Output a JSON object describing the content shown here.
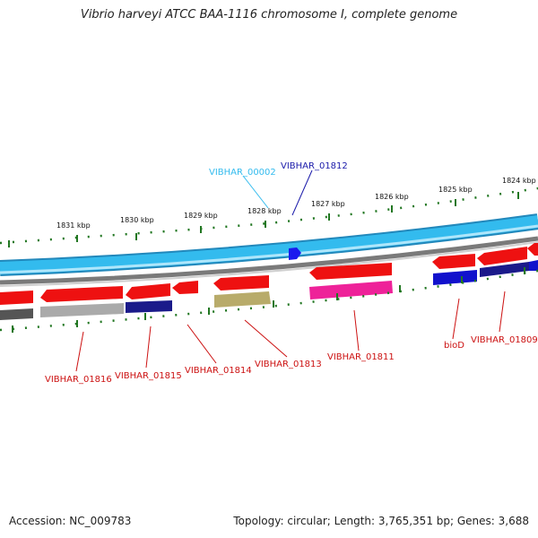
{
  "title": "Vibrio harveyi ATCC BAA-1116 chromosome I, complete genome",
  "footer": {
    "accession": "Accession: NC_009783",
    "summary": "Topology: circular; Length: 3,765,351 bp; Genes: 3,688"
  },
  "scale_labels": [
    "1831 kbp",
    "1830 kbp",
    "1829 kbp",
    "1828 kbp",
    "1827 kbp",
    "1826 kbp",
    "1825 kbp",
    "1824 kbp"
  ],
  "gene_labels_top": [
    {
      "text": "VIBHAR_00002",
      "color": "#33bbee"
    },
    {
      "text": "VIBHAR_01812",
      "color": "#1a1aaa"
    }
  ],
  "gene_labels_bottom": [
    {
      "text": "VIBHAR_01816",
      "color": "#cc1111"
    },
    {
      "text": "VIBHAR_01815",
      "color": "#cc1111"
    },
    {
      "text": "VIBHAR_01814",
      "color": "#cc1111"
    },
    {
      "text": "VIBHAR_01813",
      "color": "#cc1111"
    },
    {
      "text": "VIBHAR_01811",
      "color": "#cc1111"
    },
    {
      "text": "bioD",
      "color": "#cc1111"
    },
    {
      "text": "VIBHAR_01809",
      "color": "#cc1111"
    }
  ],
  "colors": {
    "backbone": "#33bbee",
    "backbone_dark": "#2288bb",
    "forward_cds": "#ee1111",
    "tick": "#227722",
    "rna_pink": "#ee2299",
    "olive": "#b8ab6a",
    "blue": "#1111cc",
    "grey": "#a6a6a6"
  }
}
